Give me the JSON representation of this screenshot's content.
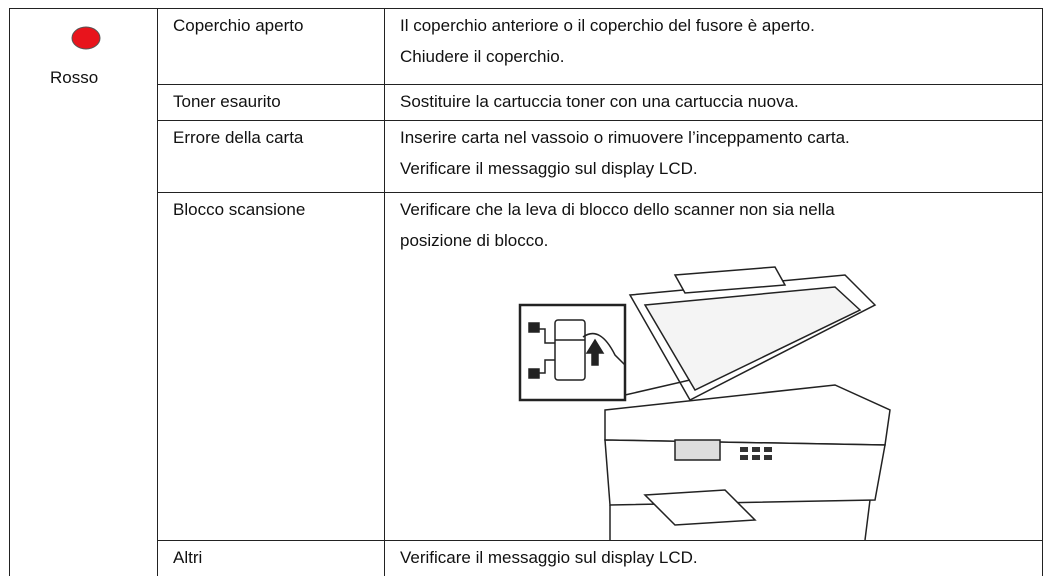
{
  "status": {
    "indicator_label": "Rosso"
  },
  "table": {
    "rows": [
      {
        "cause": "Coperchio aperto",
        "lines": [
          "Il coperchio anteriore o il coperchio del fusore è aperto.",
          "Chiudere il coperchio."
        ]
      },
      {
        "cause": "Toner esaurito",
        "lines": [
          "Sostituire la cartuccia toner con una cartuccia nuova."
        ]
      },
      {
        "cause": "Errore della carta",
        "lines": [
          "Inserire carta nel vassoio o rimuovere l’inceppamento carta.",
          "Verificare il messaggio sul display LCD."
        ]
      },
      {
        "cause": "Blocco scansione",
        "lines": [
          "Verificare che la leva di blocco dello scanner non sia nella",
          "posizione di blocco."
        ]
      },
      {
        "cause": "Altri",
        "lines": [
          "Verificare il messaggio sul display LCD."
        ]
      }
    ]
  }
}
